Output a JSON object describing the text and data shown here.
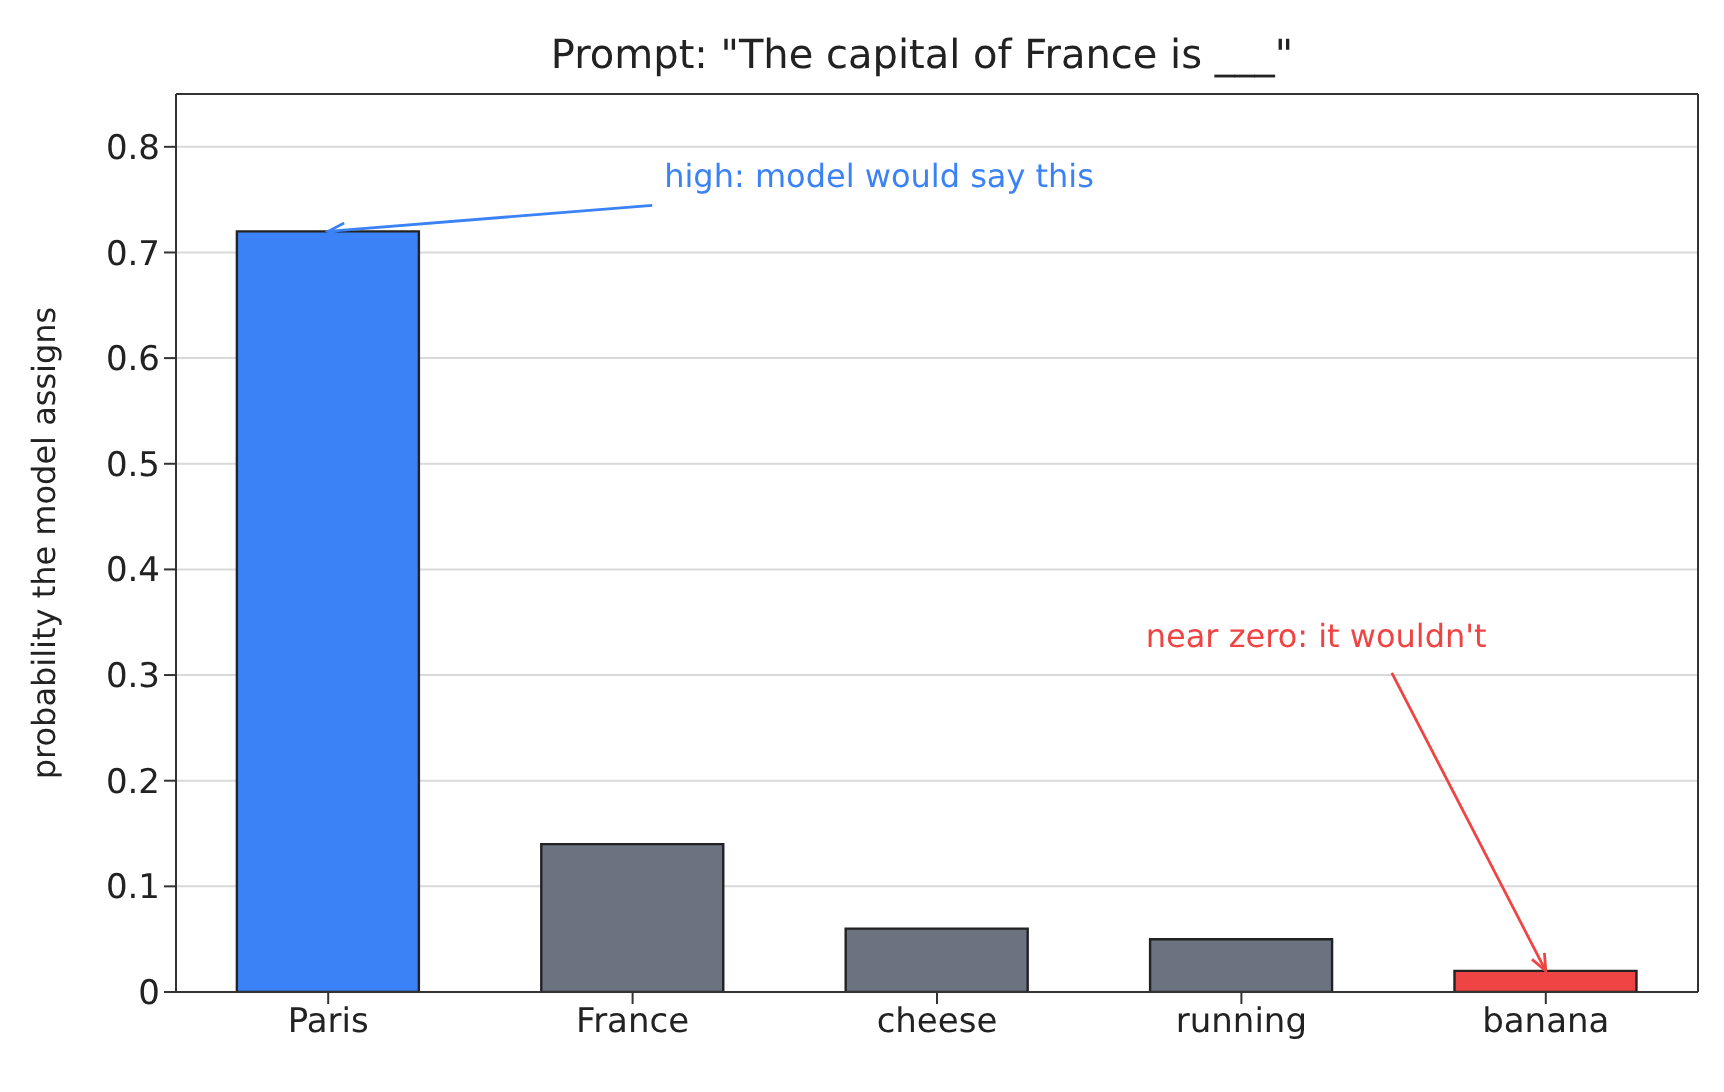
{
  "chart_data": {
    "type": "bar",
    "title": "Prompt: \"The capital of France is ___\"",
    "ylabel": "probability the model assigns",
    "categories": [
      "Paris",
      "France",
      "cheese",
      "running",
      "banana"
    ],
    "values": [
      0.72,
      0.14,
      0.06,
      0.05,
      0.02
    ],
    "colors": [
      "#3b82f6",
      "#6b7280",
      "#6b7280",
      "#6b7280",
      "#ef4444"
    ],
    "ylim": [
      0,
      0.85
    ],
    "yticks": [
      0,
      0.1,
      0.2,
      0.3,
      0.4,
      0.5,
      0.6,
      0.7,
      0.8
    ],
    "grid": "y",
    "annotations": [
      {
        "text": "high: model would say this",
        "x": "Paris",
        "y": 0.72
      },
      {
        "text": "near zero: it wouldn't",
        "x": "banana",
        "y": 0.02
      }
    ]
  }
}
